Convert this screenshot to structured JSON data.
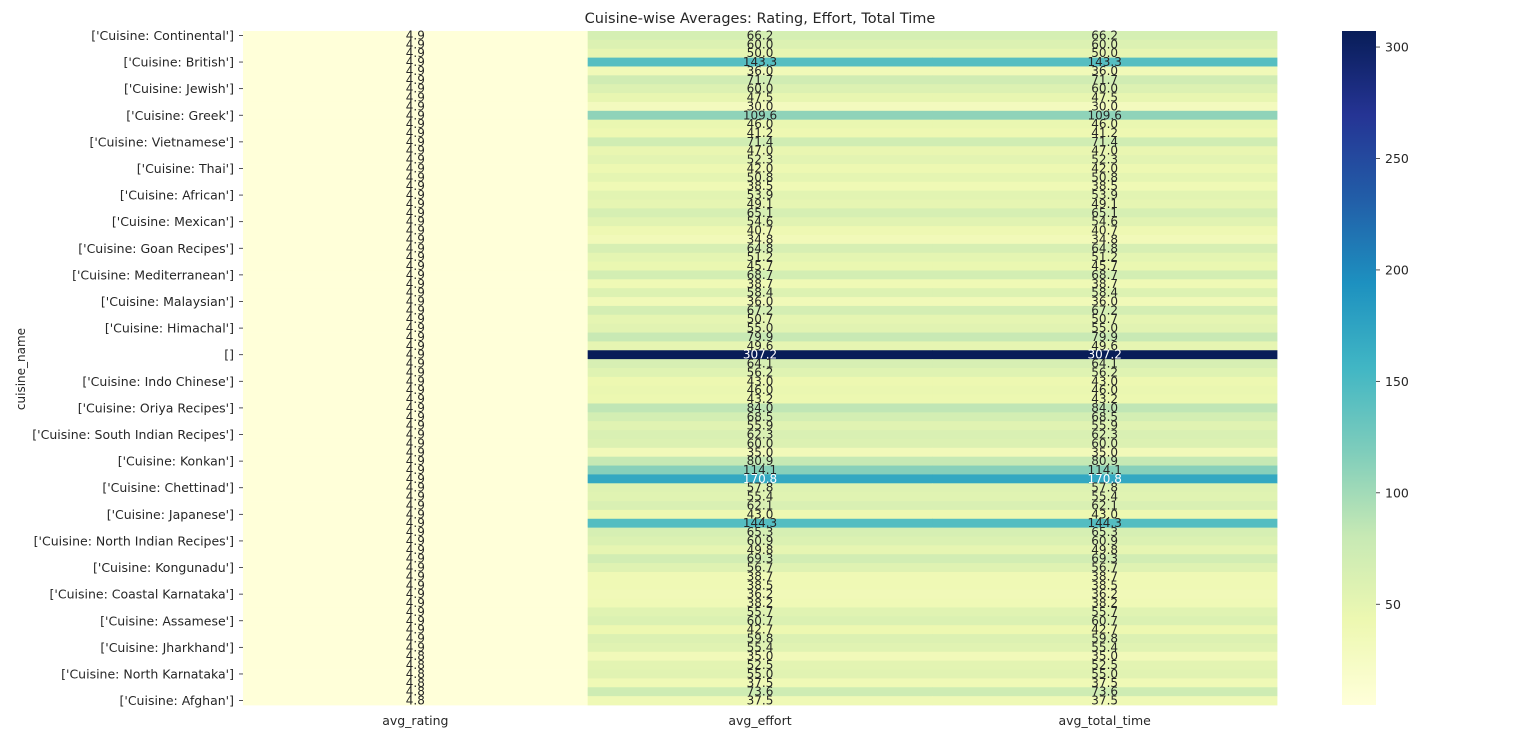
{
  "chart_data": {
    "type": "heatmap",
    "title": "Cuisine-wise Averages: Rating, Effort, Total Time",
    "ylabel": "cuisine_name",
    "xlabel": "",
    "columns": [
      "avg_rating",
      "avg_effort",
      "avg_total_time"
    ],
    "row_count": 76,
    "shown_row_labels": [
      {
        "row": 0,
        "label": "['Cuisine: Continental']"
      },
      {
        "row": 3,
        "label": "['Cuisine: British']"
      },
      {
        "row": 6,
        "label": "['Cuisine: Jewish']"
      },
      {
        "row": 9,
        "label": "['Cuisine: Greek']"
      },
      {
        "row": 12,
        "label": "['Cuisine: Vietnamese']"
      },
      {
        "row": 15,
        "label": "['Cuisine: Thai']"
      },
      {
        "row": 18,
        "label": "['Cuisine: African']"
      },
      {
        "row": 21,
        "label": "['Cuisine: Mexican']"
      },
      {
        "row": 24,
        "label": "['Cuisine: Goan Recipes']"
      },
      {
        "row": 27,
        "label": "['Cuisine: Mediterranean']"
      },
      {
        "row": 30,
        "label": "['Cuisine: Malaysian']"
      },
      {
        "row": 33,
        "label": "['Cuisine: Himachal']"
      },
      {
        "row": 36,
        "label": "[]"
      },
      {
        "row": 39,
        "label": "['Cuisine: Indo Chinese']"
      },
      {
        "row": 42,
        "label": "['Cuisine: Oriya Recipes']"
      },
      {
        "row": 45,
        "label": "['Cuisine: South Indian Recipes']"
      },
      {
        "row": 48,
        "label": "['Cuisine: Konkan']"
      },
      {
        "row": 51,
        "label": "['Cuisine: Chettinad']"
      },
      {
        "row": 54,
        "label": "['Cuisine: Japanese']"
      },
      {
        "row": 57,
        "label": "['Cuisine: North Indian Recipes']"
      },
      {
        "row": 60,
        "label": "['Cuisine: Kongunadu']"
      },
      {
        "row": 63,
        "label": "['Cuisine: Coastal Karnataka']"
      },
      {
        "row": 66,
        "label": "['Cuisine: Assamese']"
      },
      {
        "row": 69,
        "label": "['Cuisine: Jharkhand']"
      },
      {
        "row": 72,
        "label": "['Cuisine: North Karnataka']"
      },
      {
        "row": 75,
        "label": "['Cuisine: Afghan']"
      }
    ],
    "avg_rating": [
      4.9,
      4.9,
      4.9,
      4.9,
      4.9,
      4.9,
      4.9,
      4.9,
      4.9,
      4.9,
      4.9,
      4.9,
      4.9,
      4.9,
      4.9,
      4.9,
      4.9,
      4.9,
      4.9,
      4.9,
      4.9,
      4.9,
      4.9,
      4.9,
      4.9,
      4.9,
      4.9,
      4.9,
      4.9,
      4.9,
      4.9,
      4.9,
      4.9,
      4.9,
      4.9,
      4.9,
      4.9,
      4.9,
      4.9,
      4.9,
      4.9,
      4.9,
      4.9,
      4.9,
      4.9,
      4.9,
      4.9,
      4.9,
      4.9,
      4.9,
      4.9,
      4.9,
      4.9,
      4.9,
      4.9,
      4.9,
      4.9,
      4.9,
      4.9,
      4.9,
      4.9,
      4.9,
      4.9,
      4.9,
      4.9,
      4.9,
      4.9,
      4.9,
      4.9,
      4.9,
      4.8,
      4.8,
      4.8,
      4.8,
      4.8,
      4.8
    ],
    "avg_effort": [
      66.2,
      60.0,
      50.0,
      143.3,
      36.0,
      71.7,
      60.0,
      47.5,
      30.0,
      109.6,
      46.0,
      41.2,
      71.4,
      47.0,
      52.3,
      42.0,
      50.8,
      38.5,
      53.9,
      49.1,
      65.1,
      54.6,
      40.7,
      34.8,
      64.8,
      51.2,
      45.7,
      68.7,
      38.7,
      58.4,
      36.0,
      67.2,
      50.7,
      55.0,
      79.9,
      49.6,
      307.2,
      64.1,
      56.2,
      43.0,
      46.0,
      43.2,
      84.0,
      68.5,
      55.9,
      62.3,
      60.0,
      35.0,
      80.9,
      114.1,
      170.8,
      57.8,
      55.4,
      62.1,
      43.0,
      144.3,
      65.3,
      60.9,
      49.8,
      69.3,
      56.7,
      38.7,
      38.5,
      36.2,
      38.2,
      55.7,
      60.7,
      42.7,
      59.8,
      55.4,
      35.0,
      52.5,
      55.0,
      37.5,
      73.6,
      37.5
    ],
    "avg_total_time": [
      66.2,
      60.0,
      50.0,
      143.3,
      36.0,
      71.7,
      60.0,
      47.5,
      30.0,
      109.6,
      46.0,
      41.2,
      71.4,
      47.0,
      52.3,
      42.0,
      50.8,
      38.5,
      53.9,
      49.1,
      65.1,
      54.6,
      40.7,
      34.8,
      64.8,
      51.2,
      45.7,
      68.7,
      38.7,
      58.4,
      36.0,
      67.2,
      50.7,
      55.0,
      79.9,
      49.6,
      307.2,
      64.1,
      56.2,
      43.0,
      46.0,
      43.2,
      84.0,
      68.5,
      55.9,
      62.3,
      60.0,
      35.0,
      80.9,
      114.1,
      170.8,
      57.8,
      55.4,
      62.1,
      43.0,
      144.3,
      65.3,
      60.9,
      49.8,
      69.3,
      56.7,
      38.7,
      38.5,
      36.2,
      38.2,
      55.7,
      60.7,
      42.7,
      59.8,
      55.4,
      35.0,
      52.5,
      55.0,
      37.5,
      73.6,
      37.5
    ],
    "colormap": "YlGnBu",
    "colorbar": {
      "min": 4.8,
      "max": 307.2,
      "ticks": [
        50,
        100,
        150,
        200,
        250,
        300
      ]
    },
    "value_format": "1 decimal"
  }
}
